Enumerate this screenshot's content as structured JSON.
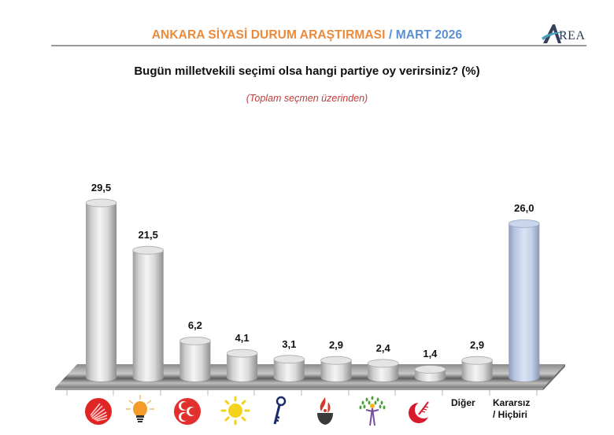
{
  "header": {
    "title_main": "ANKARA SİYASİ DURUM ARAŞTIRMASI",
    "title_sep": " / ",
    "title_date": "MART 2026",
    "logo_text": "REA",
    "colors": {
      "title_main": "#ec8a3a",
      "title_date": "#5b8fd1"
    }
  },
  "question": "Bugün milletvekili seçimi olsa hangi partiye oy verirsiniz? (%)",
  "subtitle": "(Toplam seçmen üzerinden)",
  "chart_data": {
    "type": "bar",
    "style": "3d-cylinder",
    "title": "Bugün milletvekili seçimi olsa hangi partiye oy verirsiniz? (%)",
    "subtitle": "(Toplam seçmen üzerinden)",
    "xlabel": "",
    "ylabel": "%",
    "grid": false,
    "legend": "none (party logos under bars)",
    "categories": [
      "CHP",
      "AK Parti",
      "MHP",
      "İYİ Parti",
      "Zafer Partisi",
      "Memleket Partisi",
      "DEM Parti",
      "Yeniden Refah",
      "Diğer",
      "Kararsız / Hiçbiri"
    ],
    "category_icons": [
      "chp-six-arrows-icon",
      "akp-lightbulb-icon",
      "mhp-crescents-icon",
      "iyi-sun-icon",
      "zafer-key-icon",
      "memleket-flame-icon",
      "dem-tree-icon",
      "yeniden-refah-crescent-icon",
      null,
      null
    ],
    "category_text": [
      "",
      "",
      "",
      "",
      "",
      "",
      "",
      "",
      "Diğer",
      "Kararsız / Hiçbiri"
    ],
    "values": [
      29.5,
      21.5,
      6.2,
      4.1,
      3.1,
      2.9,
      2.4,
      1.4,
      2.9,
      26.0
    ],
    "value_labels": [
      "29,5",
      "21,5",
      "6,2",
      "4,1",
      "3,1",
      "2,9",
      "2,4",
      "1,4",
      "2,9",
      "26,0"
    ],
    "bar_colors": [
      "#d6d6d6",
      "#d6d6d6",
      "#d6d6d6",
      "#d6d6d6",
      "#d6d6d6",
      "#d6d6d6",
      "#d6d6d6",
      "#d6d6d6",
      "#d6d6d6",
      "#b9c9e6"
    ],
    "ylim": [
      0,
      30
    ]
  }
}
